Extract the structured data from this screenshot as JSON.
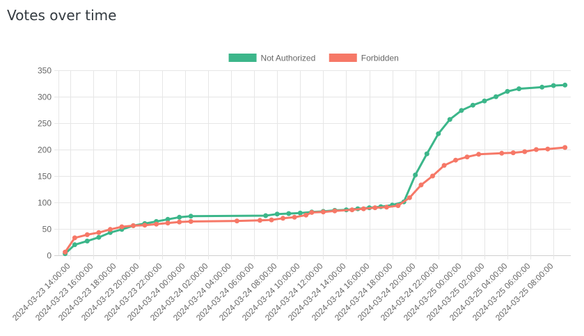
{
  "page": {
    "title": "Votes over time"
  },
  "chart_data": {
    "type": "line",
    "title": "",
    "xlabel": "",
    "ylabel": "",
    "ylim": [
      0,
      350
    ],
    "y_ticks": [
      0,
      50,
      100,
      150,
      200,
      250,
      300,
      350
    ],
    "x_range": [
      "2024-03-23 13:00:00",
      "2024-03-25 09:30:00"
    ],
    "x_tick_labels": [
      "2024-03-23 14:00:00",
      "2024-03-23 16:00:00",
      "2024-03-23 18:00:00",
      "2024-03-23 20:00:00",
      "2024-03-23 22:00:00",
      "2024-03-24 00:00:00",
      "2024-03-24 02:00:00",
      "2024-03-24 04:00:00",
      "2024-03-24 06:00:00",
      "2024-03-24 08:00:00",
      "2024-03-24 10:00:00",
      "2024-03-24 12:00:00",
      "2024-03-24 14:00:00",
      "2024-03-24 16:00:00",
      "2024-03-24 18:00:00",
      "2024-03-24 20:00:00",
      "2024-03-24 22:00:00",
      "2024-03-25 00:00:00",
      "2024-03-25 02:00:00",
      "2024-03-25 04:00:00",
      "2024-03-25 06:00:00",
      "2024-03-25 08:00:00"
    ],
    "grid": true,
    "legend_position": "top-center",
    "series": [
      {
        "name": "Not Authorized",
        "color": "#3cb68a",
        "points": [
          [
            "2024-03-23 13:35:00",
            3
          ],
          [
            "2024-03-23 14:25:00",
            20
          ],
          [
            "2024-03-23 15:30:00",
            27
          ],
          [
            "2024-03-23 16:30:00",
            34
          ],
          [
            "2024-03-23 17:30:00",
            43
          ],
          [
            "2024-03-23 18:30:00",
            49
          ],
          [
            "2024-03-23 19:30:00",
            56
          ],
          [
            "2024-03-23 20:30:00",
            60
          ],
          [
            "2024-03-23 21:30:00",
            64
          ],
          [
            "2024-03-23 22:30:00",
            68
          ],
          [
            "2024-03-23 23:30:00",
            72
          ],
          [
            "2024-03-24 00:30:00",
            74
          ],
          [
            "2024-03-24 07:00:00",
            75
          ],
          [
            "2024-03-24 08:00:00",
            78
          ],
          [
            "2024-03-24 09:00:00",
            79
          ],
          [
            "2024-03-24 10:00:00",
            80
          ],
          [
            "2024-03-24 11:00:00",
            82
          ],
          [
            "2024-03-24 12:00:00",
            83
          ],
          [
            "2024-03-24 13:00:00",
            85
          ],
          [
            "2024-03-24 14:00:00",
            86
          ],
          [
            "2024-03-24 15:00:00",
            88
          ],
          [
            "2024-03-24 16:00:00",
            90
          ],
          [
            "2024-03-24 17:00:00",
            92
          ],
          [
            "2024-03-24 18:00:00",
            95
          ],
          [
            "2024-03-24 19:00:00",
            101
          ],
          [
            "2024-03-24 20:00:00",
            152
          ],
          [
            "2024-03-24 21:00:00",
            192
          ],
          [
            "2024-03-24 22:00:00",
            230
          ],
          [
            "2024-03-24 23:00:00",
            257
          ],
          [
            "2024-03-25 00:00:00",
            274
          ],
          [
            "2024-03-25 01:00:00",
            284
          ],
          [
            "2024-03-25 02:00:00",
            292
          ],
          [
            "2024-03-25 03:00:00",
            300
          ],
          [
            "2024-03-25 04:00:00",
            310
          ],
          [
            "2024-03-25 05:00:00",
            315
          ],
          [
            "2024-03-25 07:00:00",
            318
          ],
          [
            "2024-03-25 08:00:00",
            321
          ],
          [
            "2024-03-25 09:00:00",
            322
          ]
        ]
      },
      {
        "name": "Forbidden",
        "color": "#f67867",
        "points": [
          [
            "2024-03-23 13:35:00",
            6
          ],
          [
            "2024-03-23 14:25:00",
            33
          ],
          [
            "2024-03-23 15:30:00",
            39
          ],
          [
            "2024-03-23 16:30:00",
            43
          ],
          [
            "2024-03-23 17:30:00",
            49
          ],
          [
            "2024-03-23 18:30:00",
            54
          ],
          [
            "2024-03-23 19:30:00",
            56
          ],
          [
            "2024-03-23 20:30:00",
            57
          ],
          [
            "2024-03-23 21:30:00",
            59
          ],
          [
            "2024-03-23 22:30:00",
            61
          ],
          [
            "2024-03-23 23:30:00",
            63
          ],
          [
            "2024-03-24 00:30:00",
            64
          ],
          [
            "2024-03-24 04:30:00",
            65
          ],
          [
            "2024-03-24 06:30:00",
            66
          ],
          [
            "2024-03-24 07:30:00",
            67
          ],
          [
            "2024-03-24 08:30:00",
            70
          ],
          [
            "2024-03-24 09:30:00",
            72
          ],
          [
            "2024-03-24 10:30:00",
            76
          ],
          [
            "2024-03-24 11:00:00",
            81
          ],
          [
            "2024-03-24 12:00:00",
            82
          ],
          [
            "2024-03-24 13:00:00",
            84
          ],
          [
            "2024-03-24 14:30:00",
            86
          ],
          [
            "2024-03-24 15:30:00",
            88
          ],
          [
            "2024-03-24 16:30:00",
            90
          ],
          [
            "2024-03-24 17:30:00",
            91
          ],
          [
            "2024-03-24 18:30:00",
            94
          ],
          [
            "2024-03-24 19:30:00",
            109
          ],
          [
            "2024-03-24 20:30:00",
            133
          ],
          [
            "2024-03-24 21:30:00",
            150
          ],
          [
            "2024-03-24 22:30:00",
            170
          ],
          [
            "2024-03-24 23:30:00",
            180
          ],
          [
            "2024-03-25 00:30:00",
            186
          ],
          [
            "2024-03-25 01:30:00",
            191
          ],
          [
            "2024-03-25 03:30:00",
            193
          ],
          [
            "2024-03-25 04:30:00",
            194
          ],
          [
            "2024-03-25 05:30:00",
            196
          ],
          [
            "2024-03-25 06:30:00",
            200
          ],
          [
            "2024-03-25 07:30:00",
            201
          ],
          [
            "2024-03-25 09:00:00",
            204
          ]
        ]
      }
    ]
  }
}
